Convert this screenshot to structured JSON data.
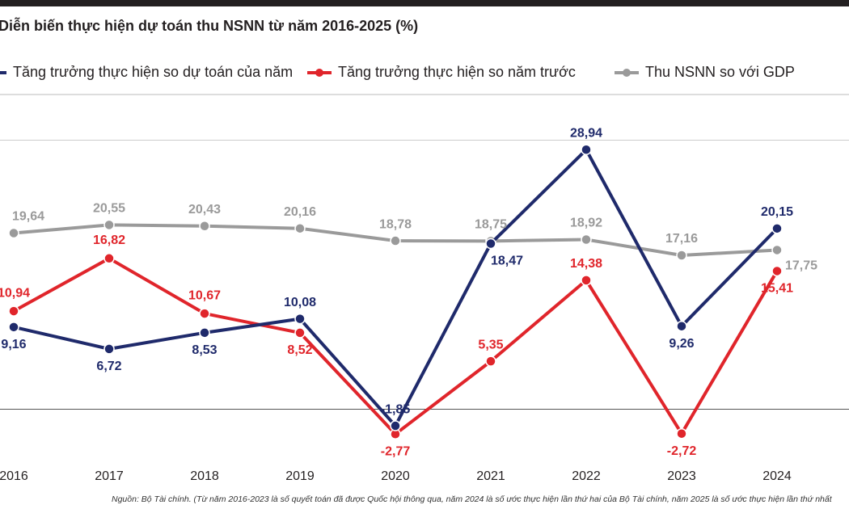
{
  "chart_data": {
    "type": "line",
    "title": "Diễn biến thực hiện dự toán thu NSNN từ năm 2016-2025 (%)",
    "categories": [
      "2016",
      "2017",
      "2018",
      "2019",
      "2020",
      "2021",
      "2022",
      "2023",
      "2024"
    ],
    "series": [
      {
        "name": "Tăng trưởng thực hiện so dự toán của năm",
        "color": "#1f2a6b",
        "values": [
          9.16,
          6.72,
          8.53,
          10.08,
          -1.85,
          18.47,
          28.94,
          9.26,
          20.15
        ],
        "value_labels": [
          "9,16",
          "6,72",
          "8,53",
          "10,08",
          "-1,85",
          "18,47",
          "28,94",
          "9,26",
          "20,15"
        ]
      },
      {
        "name": "Tăng trưởng thực hiện so năm trước",
        "color": "#e0252b",
        "values": [
          10.94,
          16.82,
          10.67,
          8.52,
          -2.77,
          5.35,
          14.38,
          -2.72,
          15.41
        ],
        "value_labels": [
          "10,94",
          "16,82",
          "10,67",
          "8,52",
          "-2,77",
          "5,35",
          "14,38",
          "-2,72",
          "15,41"
        ]
      },
      {
        "name": "Thu NSNN so với GDP",
        "color": "#9a9a9a",
        "values": [
          19.64,
          20.55,
          20.43,
          20.16,
          18.78,
          18.75,
          18.92,
          17.16,
          17.75
        ],
        "value_labels": [
          "19,64",
          "20,55",
          "20,43",
          "20,16",
          "18,78",
          "18,75",
          "18,92",
          "17,16",
          "17,75"
        ]
      }
    ],
    "ylim": [
      -5,
      35
    ],
    "yticks": [
      0,
      30
    ],
    "grid": true,
    "source": "Nguồn: Bộ Tài chính. (Từ năm 2016-2023 là số quyết toán đã được Quốc hội thông qua, năm 2024 là số ước thực hiện lần thứ hai của Bộ Tài chính, năm 2025 là số ước thực hiện lần thứ nhất"
  }
}
